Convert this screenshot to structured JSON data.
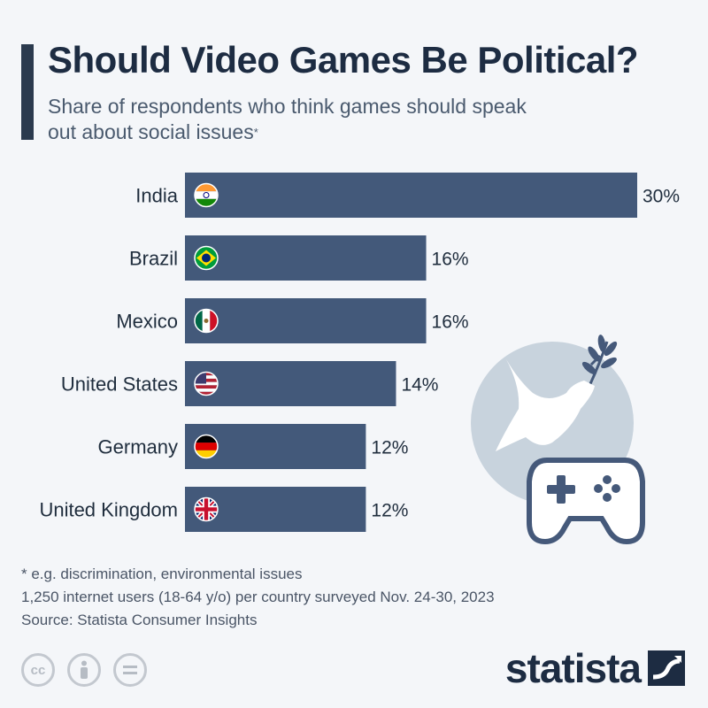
{
  "header": {
    "title": "Should Video Games Be Political?",
    "subtitle": "Share of respondents who think games should speak out about social issues",
    "subtitle_mark": "*"
  },
  "chart_data": {
    "type": "bar",
    "orientation": "horizontal",
    "categories": [
      "India",
      "Brazil",
      "Mexico",
      "United States",
      "Germany",
      "United Kingdom"
    ],
    "values": [
      30,
      16,
      16,
      14,
      12,
      12
    ],
    "value_labels": [
      "30%",
      "16%",
      "16%",
      "14%",
      "12%",
      "12%"
    ],
    "flags": [
      "flag-india",
      "flag-brazil",
      "flag-mexico",
      "flag-united-states",
      "flag-germany",
      "flag-united-kingdom"
    ],
    "unit": "%",
    "xlim": [
      0,
      30
    ],
    "bar_color": "#43597a",
    "grid": false,
    "legend": "none"
  },
  "footnotes": {
    "note": "* e.g. discrimination, environmental issues",
    "sample": "1,250 internet users (18-64 y/o) per country surveyed Nov. 24-30, 2023",
    "source": "Source: Statista Consumer Insights"
  },
  "license_icons": [
    "cc-icon",
    "person-icon",
    "equals-icon"
  ],
  "brand": {
    "name": "statista",
    "logo": "statista-logo-icon"
  },
  "colors": {
    "title": "#1d2c42",
    "bar": "#43597a",
    "accent": "#2b3a4e",
    "circle": "#c8d3dd"
  }
}
